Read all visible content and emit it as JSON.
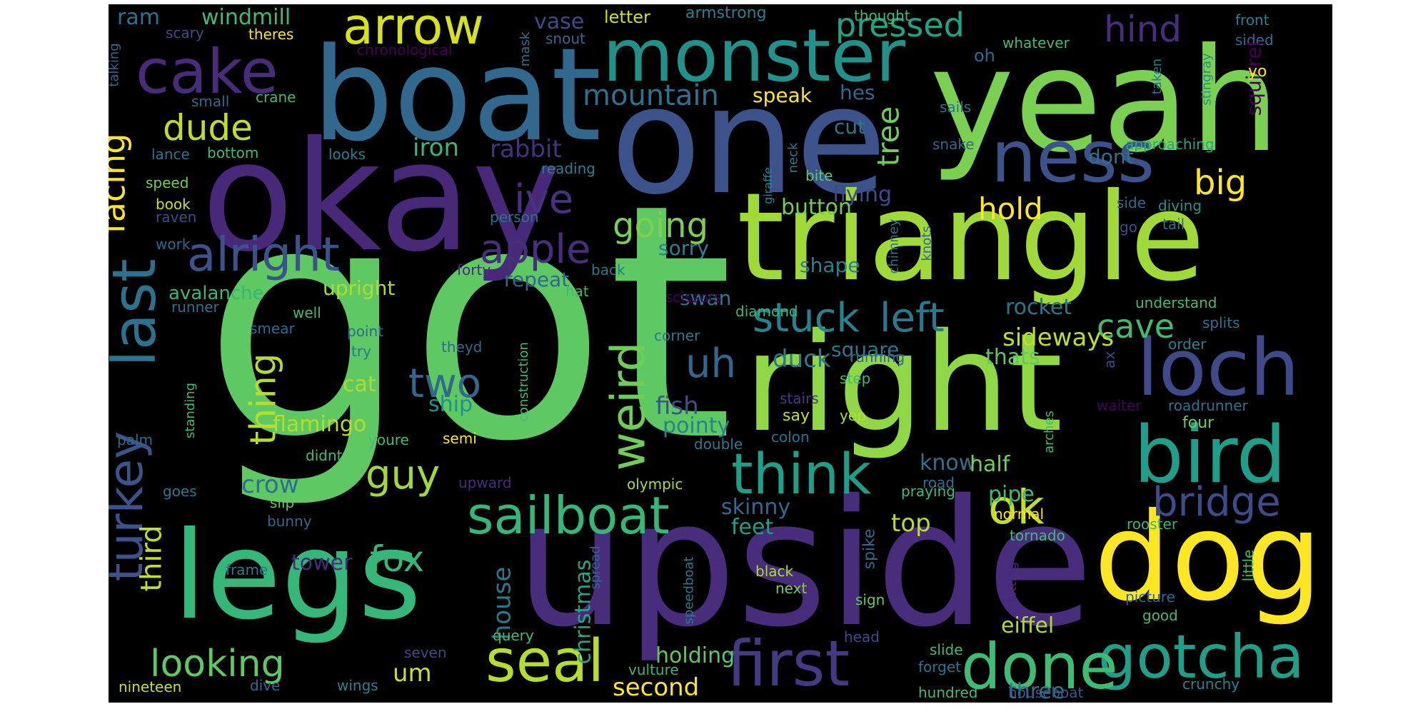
{
  "background_color": "#000000",
  "palette": "viridis",
  "words": [
    {
      "text": "got",
      "color": "#5ec962"
    },
    {
      "text": "upside",
      "color": "#472d7b"
    },
    {
      "text": "yeah",
      "color": "#7ad151"
    },
    {
      "text": "one",
      "color": "#3b528b"
    },
    {
      "text": "boat",
      "color": "#31688e"
    },
    {
      "text": "okay",
      "color": "#482878"
    },
    {
      "text": "triangle",
      "color": "#a0da39"
    },
    {
      "text": "right",
      "color": "#8fd744"
    },
    {
      "text": "legs",
      "color": "#35b779"
    },
    {
      "text": "dog",
      "color": "#fde725"
    },
    {
      "text": "monster",
      "color": "#21918c"
    },
    {
      "text": "loch",
      "color": "#3e4a89"
    },
    {
      "text": "bird",
      "color": "#1f9e89"
    },
    {
      "text": "ness",
      "color": "#3b528b"
    },
    {
      "text": "gotcha",
      "color": "#1f9e89"
    },
    {
      "text": "first",
      "color": "#443a83"
    },
    {
      "text": "done",
      "color": "#3fbc73"
    },
    {
      "text": "sailboat",
      "color": "#35b779"
    },
    {
      "text": "cake",
      "color": "#472c7a"
    },
    {
      "text": "last",
      "color": "#2c728e"
    },
    {
      "text": "turkey",
      "color": "#3b528b"
    },
    {
      "text": "seal",
      "color": "#b5de2b"
    },
    {
      "text": "think",
      "color": "#1f9e89"
    },
    {
      "text": "arrow",
      "color": "#d8e219"
    },
    {
      "text": "alright",
      "color": "#3b528b"
    },
    {
      "text": "weird",
      "color": "#6ece58"
    },
    {
      "text": "ok",
      "color": "#c2df23"
    },
    {
      "text": "stuck",
      "color": "#26828e"
    },
    {
      "text": "left",
      "color": "#2a788e"
    },
    {
      "text": "bridge",
      "color": "#3e4a89"
    },
    {
      "text": "apple",
      "color": "#472d7b"
    },
    {
      "text": "ive",
      "color": "#46327e"
    },
    {
      "text": "uh",
      "color": "#31688e"
    },
    {
      "text": "guy",
      "color": "#a0da39"
    },
    {
      "text": "looking",
      "color": "#5ec962"
    },
    {
      "text": "dude",
      "color": "#bddf26"
    },
    {
      "text": "pressed",
      "color": "#20a486"
    },
    {
      "text": "two",
      "color": "#31688e"
    },
    {
      "text": "thing",
      "color": "#b5de2b"
    },
    {
      "text": "facing",
      "color": "#fde725"
    },
    {
      "text": "fox",
      "color": "#35b779"
    },
    {
      "text": "going",
      "color": "#7ad151"
    },
    {
      "text": "hind",
      "color": "#472d7b"
    },
    {
      "text": "cave",
      "color": "#3fbc73"
    },
    {
      "text": "big",
      "color": "#fde725"
    },
    {
      "text": "mountain",
      "color": "#2c728e"
    },
    {
      "text": "tree",
      "color": "#6ece58"
    },
    {
      "text": "hold",
      "color": "#fde725"
    },
    {
      "text": "third",
      "color": "#c2df23"
    },
    {
      "text": "house",
      "color": "#2a788e"
    },
    {
      "text": "christmas",
      "color": "#22a884"
    },
    {
      "text": "sideways",
      "color": "#bddf26"
    },
    {
      "text": "second",
      "color": "#fde725"
    },
    {
      "text": "holding",
      "color": "#5ec962"
    },
    {
      "text": "eiffel",
      "color": "#addc30"
    },
    {
      "text": "three",
      "color": "#2a788e"
    },
    {
      "text": "um",
      "color": "#c8e020"
    },
    {
      "text": "crow",
      "color": "#2e6e8e"
    },
    {
      "text": "iron",
      "color": "#35b779"
    },
    {
      "text": "rabbit",
      "color": "#46327e"
    },
    {
      "text": "duck",
      "color": "#2a788e"
    },
    {
      "text": "ship",
      "color": "#21918c"
    },
    {
      "text": "flamingo",
      "color": "#b5de2b"
    },
    {
      "text": "cat",
      "color": "#addc30"
    },
    {
      "text": "fish",
      "color": "#3b528b"
    },
    {
      "text": "pointy",
      "color": "#26828e"
    },
    {
      "text": "rocket",
      "color": "#2a788e"
    },
    {
      "text": "thats",
      "color": "#5ec962"
    },
    {
      "text": "know",
      "color": "#2c728e"
    },
    {
      "text": "half",
      "color": "#6ece58"
    },
    {
      "text": "top",
      "color": "#b5de2b"
    },
    {
      "text": "pipe",
      "color": "#3fbc73"
    },
    {
      "text": "skinny",
      "color": "#31688e"
    },
    {
      "text": "feet",
      "color": "#1f9e89"
    },
    {
      "text": "tower",
      "color": "#472d7b"
    },
    {
      "text": "flying",
      "color": "#3e4a89"
    },
    {
      "text": "button",
      "color": "#6ece58"
    },
    {
      "text": "dont",
      "color": "#2c728e"
    },
    {
      "text": "sorry",
      "color": "#26828e"
    },
    {
      "text": "repeat",
      "color": "#31688e"
    },
    {
      "text": "upright",
      "color": "#addc30"
    },
    {
      "text": "avalanche",
      "color": "#35b779"
    },
    {
      "text": "swan",
      "color": "#2a788e"
    },
    {
      "text": "shape",
      "color": "#26828e"
    },
    {
      "text": "square",
      "color": "#2a788e"
    },
    {
      "text": "speak",
      "color": "#fde725"
    },
    {
      "text": "hes",
      "color": "#31688e"
    },
    {
      "text": "cut",
      "color": "#2a788e"
    },
    {
      "text": "windmill",
      "color": "#3fbc73"
    },
    {
      "text": "ram",
      "color": "#2c728e"
    },
    {
      "text": "vase",
      "color": "#3e4a89"
    },
    {
      "text": "letter",
      "color": "#c8e020"
    },
    {
      "text": "armstrong",
      "color": "#26828e"
    },
    {
      "text": "thought",
      "color": "#3fbc73"
    },
    {
      "text": "front",
      "color": "#26828e"
    },
    {
      "text": "sided",
      "color": "#31688e"
    },
    {
      "text": "squirrel",
      "color": "#440154"
    },
    {
      "text": "yo",
      "color": "#fde725"
    },
    {
      "text": "stingray",
      "color": "#21918c"
    },
    {
      "text": "taken",
      "color": "#2a788e"
    },
    {
      "text": "oh",
      "color": "#31688e"
    },
    {
      "text": "whatever",
      "color": "#3fbc73"
    },
    {
      "text": "sails",
      "color": "#2c728e"
    },
    {
      "text": "snake",
      "color": "#31688e"
    },
    {
      "text": "approaching",
      "color": "#22a884"
    },
    {
      "text": "diving",
      "color": "#21918c"
    },
    {
      "text": "side",
      "color": "#31688e"
    },
    {
      "text": "tail",
      "color": "#2c728e"
    },
    {
      "text": "go",
      "color": "#3e4a89"
    },
    {
      "text": "knots",
      "color": "#31688e"
    },
    {
      "text": "chimney",
      "color": "#2c728e"
    },
    {
      "text": "neck",
      "color": "#2a788e"
    },
    {
      "text": "giraffe",
      "color": "#26828e"
    },
    {
      "text": "bite",
      "color": "#5ec962"
    },
    {
      "text": "scissors",
      "color": "#440154"
    },
    {
      "text": "diamond",
      "color": "#35b779"
    },
    {
      "text": "corner",
      "color": "#2a788e"
    },
    {
      "text": "running",
      "color": "#31688e"
    },
    {
      "text": "step",
      "color": "#3fbc73"
    },
    {
      "text": "stairs",
      "color": "#443a83"
    },
    {
      "text": "say",
      "color": "#c2df23"
    },
    {
      "text": "yep",
      "color": "#b5de2b"
    },
    {
      "text": "colon",
      "color": "#2c728e"
    },
    {
      "text": "double",
      "color": "#2a788e"
    },
    {
      "text": "olympic",
      "color": "#addc30"
    },
    {
      "text": "road",
      "color": "#2c728e"
    },
    {
      "text": "praying",
      "color": "#3fbc73"
    },
    {
      "text": "normal",
      "color": "#fde725"
    },
    {
      "text": "tornado",
      "color": "#3fbc73"
    },
    {
      "text": "rooster",
      "color": "#35b779"
    },
    {
      "text": "little",
      "color": "#3fbc73"
    },
    {
      "text": "understand",
      "color": "#3fbc73"
    },
    {
      "text": "splits",
      "color": "#2c728e"
    },
    {
      "text": "order",
      "color": "#26828e"
    },
    {
      "text": "ax",
      "color": "#3e4a89"
    },
    {
      "text": "waiter",
      "color": "#440154"
    },
    {
      "text": "roadrunner",
      "color": "#2c728e"
    },
    {
      "text": "four",
      "color": "#6ece58"
    },
    {
      "text": "arches",
      "color": "#3fbc73"
    },
    {
      "text": "picture",
      "color": "#31688e"
    },
    {
      "text": "sitting",
      "color": "#482878"
    },
    {
      "text": "good",
      "color": "#3fbc73"
    },
    {
      "text": "crunchy",
      "color": "#26828e"
    },
    {
      "text": "houseboat",
      "color": "#3b528b"
    },
    {
      "text": "hundred",
      "color": "#3fbc73"
    },
    {
      "text": "forget",
      "color": "#2c728e"
    },
    {
      "text": "slide",
      "color": "#3fbc73"
    },
    {
      "text": "head",
      "color": "#3e4a89"
    },
    {
      "text": "sign",
      "color": "#5ec962"
    },
    {
      "text": "next",
      "color": "#7ad151"
    },
    {
      "text": "black",
      "color": "#addc30"
    },
    {
      "text": "spike",
      "color": "#31688e"
    },
    {
      "text": "speedboat",
      "color": "#2a788e"
    },
    {
      "text": "spread",
      "color": "#31688e"
    },
    {
      "text": "vulture",
      "color": "#35b779"
    },
    {
      "text": "query",
      "color": "#3fbc73"
    },
    {
      "text": "construction",
      "color": "#3fbc73"
    },
    {
      "text": "semi",
      "color": "#fde725"
    },
    {
      "text": "youre",
      "color": "#3fbc73"
    },
    {
      "text": "didnt",
      "color": "#3fbc73"
    },
    {
      "text": "theyd",
      "color": "#31688e"
    },
    {
      "text": "upward",
      "color": "#472d7b"
    },
    {
      "text": "slip",
      "color": "#5ec962"
    },
    {
      "text": "bunny",
      "color": "#31688e"
    },
    {
      "text": "goes",
      "color": "#2a788e"
    },
    {
      "text": "frame",
      "color": "#2a788e"
    },
    {
      "text": "dive",
      "color": "#31688e"
    },
    {
      "text": "wings",
      "color": "#26828e"
    },
    {
      "text": "seven",
      "color": "#3e4a89"
    },
    {
      "text": "nineteen",
      "color": "#c8e020"
    },
    {
      "text": "palm",
      "color": "#31688e"
    },
    {
      "text": "standing",
      "color": "#3fbc73"
    },
    {
      "text": "smear",
      "color": "#31688e"
    },
    {
      "text": "try",
      "color": "#2a788e"
    },
    {
      "text": "point",
      "color": "#31688e"
    },
    {
      "text": "well",
      "color": "#3fbc73"
    },
    {
      "text": "runner",
      "color": "#2c728e"
    },
    {
      "text": "work",
      "color": "#31688e"
    },
    {
      "text": "raven",
      "color": "#3e4a89"
    },
    {
      "text": "book",
      "color": "#c8e020"
    },
    {
      "text": "speed",
      "color": "#6ece58"
    },
    {
      "text": "lance",
      "color": "#2c728e"
    },
    {
      "text": "bottom",
      "color": "#3fbc73"
    },
    {
      "text": "looks",
      "color": "#26828e"
    },
    {
      "text": "small",
      "color": "#31688e"
    },
    {
      "text": "crane",
      "color": "#3fbc73"
    },
    {
      "text": "talking",
      "color": "#31688e"
    },
    {
      "text": "scary",
      "color": "#3e4a89"
    },
    {
      "text": "theres",
      "color": "#fde725"
    },
    {
      "text": "chronological",
      "color": "#440154"
    },
    {
      "text": "mask",
      "color": "#2c728e"
    },
    {
      "text": "snout",
      "color": "#31688e"
    },
    {
      "text": "reading",
      "color": "#26828e"
    },
    {
      "text": "person",
      "color": "#2c728e"
    },
    {
      "text": "forty",
      "color": "#472d7b"
    },
    {
      "text": "back",
      "color": "#2a788e"
    },
    {
      "text": "hat",
      "color": "#3fbc73"
    }
  ]
}
